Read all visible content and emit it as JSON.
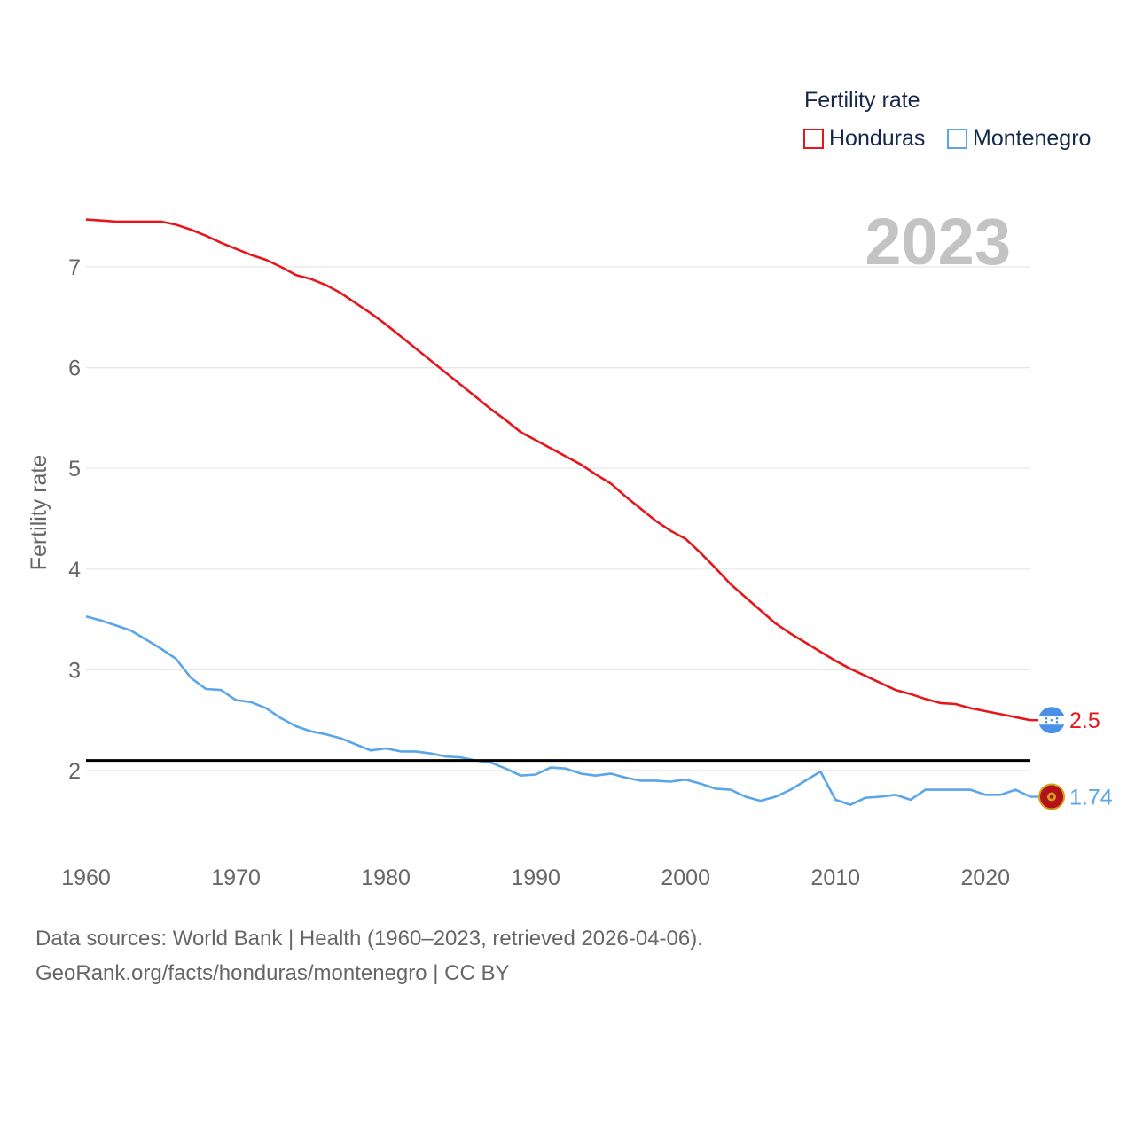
{
  "legend": {
    "title": "Fertility rate",
    "items": [
      {
        "label": "Honduras",
        "color": "#e8161b"
      },
      {
        "label": "Montenegro",
        "color": "#5aa6e8"
      }
    ]
  },
  "year_label": "2023",
  "footer": {
    "line1": "Data sources: World Bank | Health (1960–2023, retrieved 2026-04-06).",
    "line2": "GeoRank.org/facts/honduras/montenegro | CC BY"
  },
  "chart_data": {
    "type": "line",
    "title": "Fertility rate",
    "ylabel": "Fertility rate",
    "xlabel": "",
    "xlim": [
      1960,
      2023
    ],
    "ylim": [
      1.3,
      7.7
    ],
    "x_ticks": [
      1960,
      1970,
      1980,
      1990,
      2000,
      2010,
      2020
    ],
    "y_ticks": [
      2,
      3,
      4,
      5,
      6,
      7
    ],
    "grid": true,
    "reference_line": {
      "y": 2.1,
      "color": "#000000"
    },
    "x": [
      1960,
      1961,
      1962,
      1963,
      1964,
      1965,
      1966,
      1967,
      1968,
      1969,
      1970,
      1971,
      1972,
      1973,
      1974,
      1975,
      1976,
      1977,
      1978,
      1979,
      1980,
      1981,
      1982,
      1983,
      1984,
      1985,
      1986,
      1987,
      1988,
      1989,
      1990,
      1991,
      1992,
      1993,
      1994,
      1995,
      1996,
      1997,
      1998,
      1999,
      2000,
      2001,
      2002,
      2003,
      2004,
      2005,
      2006,
      2007,
      2008,
      2009,
      2010,
      2011,
      2012,
      2013,
      2014,
      2015,
      2016,
      2017,
      2018,
      2019,
      2020,
      2021,
      2022,
      2023
    ],
    "series": [
      {
        "name": "Honduras",
        "color": "#e8161b",
        "end_label": "2.5",
        "values": [
          7.47,
          7.46,
          7.45,
          7.45,
          7.45,
          7.45,
          7.42,
          7.37,
          7.31,
          7.24,
          7.18,
          7.12,
          7.07,
          7.0,
          6.92,
          6.88,
          6.82,
          6.74,
          6.64,
          6.54,
          6.43,
          6.31,
          6.19,
          6.07,
          5.95,
          5.83,
          5.71,
          5.59,
          5.48,
          5.36,
          5.28,
          5.2,
          5.12,
          5.04,
          4.94,
          4.85,
          4.72,
          4.6,
          4.48,
          4.38,
          4.3,
          4.16,
          4.01,
          3.85,
          3.72,
          3.59,
          3.46,
          3.36,
          3.27,
          3.18,
          3.09,
          3.01,
          2.94,
          2.87,
          2.8,
          2.76,
          2.71,
          2.67,
          2.66,
          2.62,
          2.59,
          2.56,
          2.53,
          2.5
        ]
      },
      {
        "name": "Montenegro",
        "color": "#5aa6e8",
        "end_label": "1.74",
        "values": [
          3.53,
          3.49,
          3.44,
          3.39,
          3.3,
          3.21,
          3.11,
          2.92,
          2.81,
          2.8,
          2.7,
          2.68,
          2.62,
          2.52,
          2.44,
          2.39,
          2.36,
          2.32,
          2.26,
          2.2,
          2.22,
          2.19,
          2.19,
          2.17,
          2.14,
          2.13,
          2.1,
          2.08,
          2.02,
          1.95,
          1.96,
          2.03,
          2.02,
          1.97,
          1.95,
          1.97,
          1.93,
          1.9,
          1.9,
          1.89,
          1.91,
          1.87,
          1.82,
          1.81,
          1.74,
          1.7,
          1.74,
          1.81,
          1.9,
          1.99,
          1.71,
          1.66,
          1.73,
          1.74,
          1.76,
          1.71,
          1.81,
          1.81,
          1.81,
          1.81,
          1.76,
          1.76,
          1.81,
          1.74
        ]
      }
    ]
  }
}
